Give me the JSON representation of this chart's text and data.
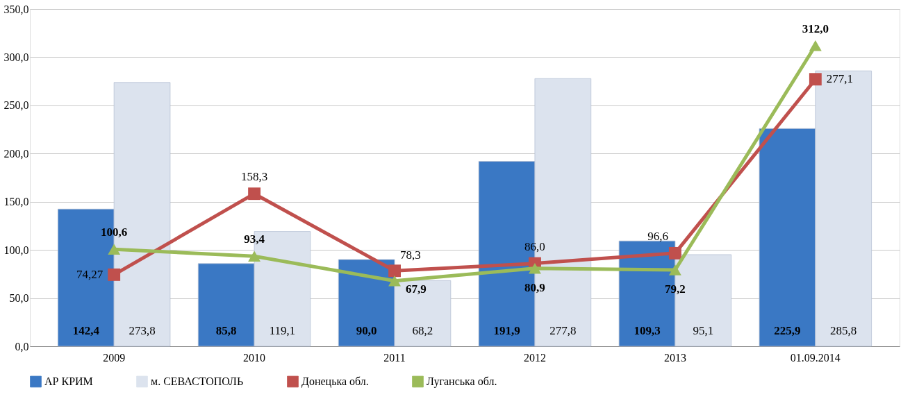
{
  "chart_data": {
    "type": "bar",
    "categories": [
      "2009",
      "2010",
      "2011",
      "2012",
      "2013",
      "01.09.2014"
    ],
    "series": [
      {
        "name": "АР КРИМ",
        "color": "#3a78c4",
        "values": [
          142.4,
          85.8,
          90.0,
          191.9,
          109.3,
          225.9
        ],
        "value_labels": [
          "142,4",
          "85,8",
          "90,0",
          "191,9",
          "109,3",
          "225,9"
        ]
      },
      {
        "name": "м. СЕВАСТОПОЛЬ",
        "color": "#dce3ee",
        "values": [
          273.8,
          119.1,
          68.2,
          277.8,
          95.1,
          285.8
        ],
        "value_labels": [
          "273,8",
          "119,1",
          "68,2",
          "277,8",
          "95,1",
          "285,8"
        ]
      },
      {
        "name": "Донецька обл.",
        "type": "line",
        "color": "#c0504d",
        "marker": "square",
        "values": [
          74.27,
          158.3,
          78.3,
          86.0,
          96.6,
          277.1
        ],
        "value_labels": [
          "74,27",
          "158,3",
          "78,3",
          "86,0",
          "96,6",
          "277,1"
        ]
      },
      {
        "name": "Луганська обл.",
        "type": "line",
        "color": "#9bbb59",
        "marker": "triangle",
        "values": [
          100.6,
          93.4,
          67.9,
          80.9,
          79.2,
          312.0
        ],
        "value_labels": [
          "100,6",
          "93,4",
          "67,9",
          "80,9",
          "79,2",
          "312,0"
        ]
      }
    ],
    "ylim": [
      0,
      350
    ],
    "yticks": [
      {
        "value": 0,
        "label": "0,0"
      },
      {
        "value": 50,
        "label": "50,0"
      },
      {
        "value": 100,
        "label": "100,0"
      },
      {
        "value": 150,
        "label": "150,0"
      },
      {
        "value": 200,
        "label": "200,0"
      },
      {
        "value": 250,
        "label": "250,0"
      },
      {
        "value": 300,
        "label": "300,0"
      },
      {
        "value": 350,
        "label": "350,0"
      }
    ],
    "grid": "y",
    "legend": "bottom"
  }
}
